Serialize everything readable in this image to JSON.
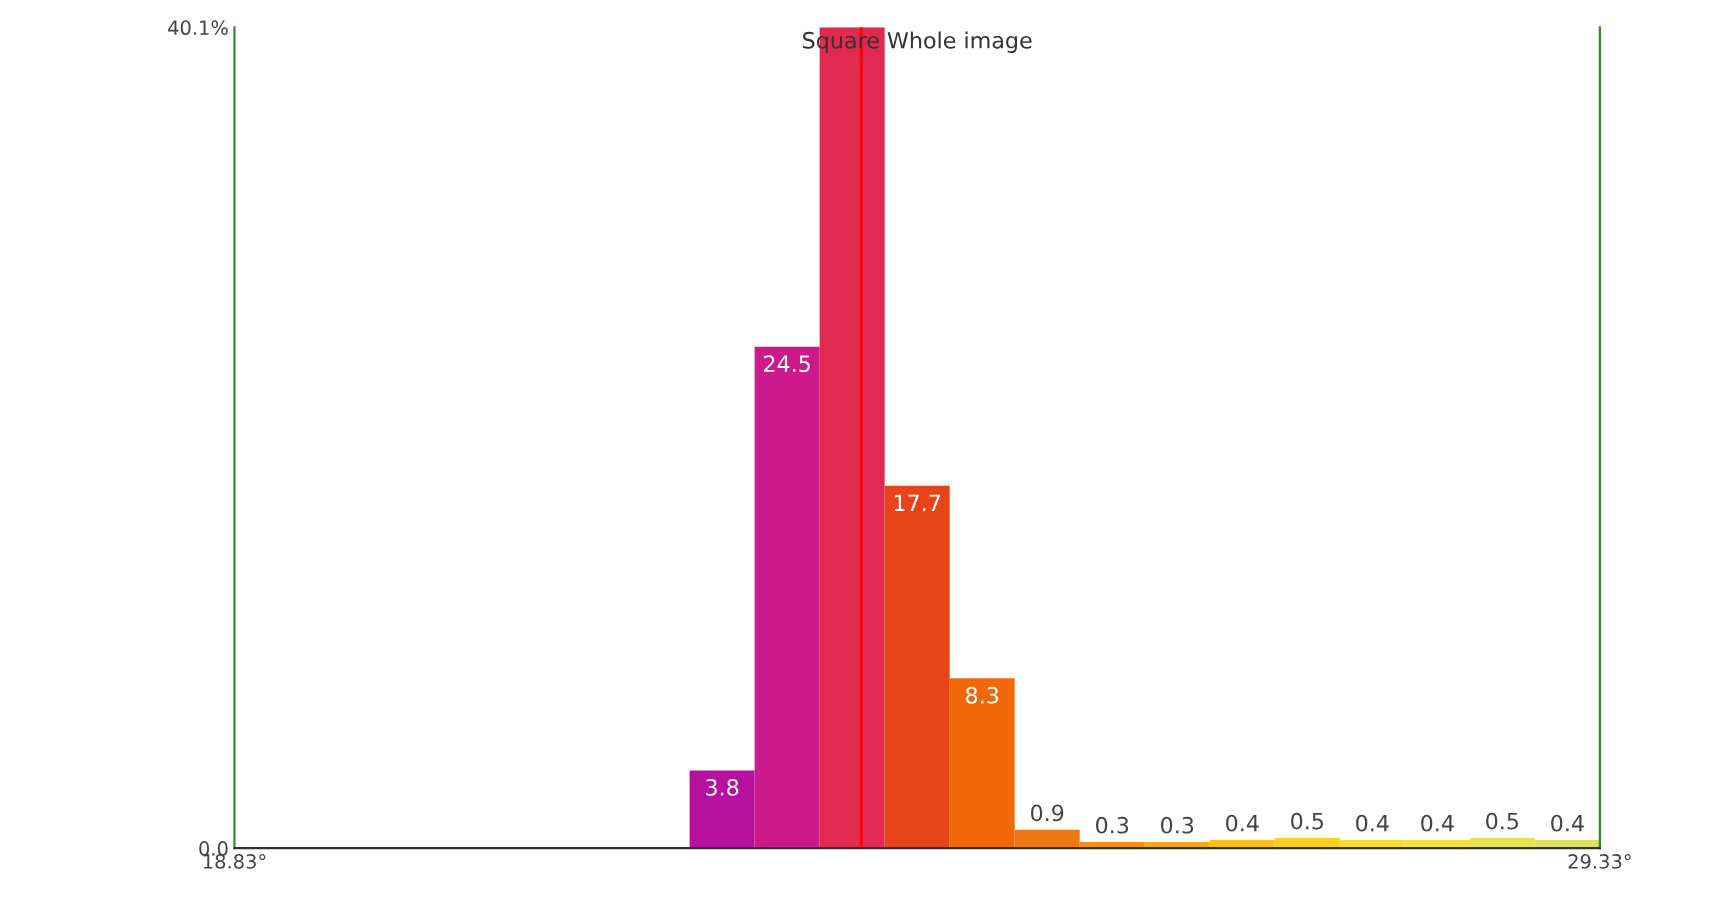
{
  "chart_data": {
    "type": "histogram",
    "title": "Square Whole image",
    "bins": [
      18.83,
      19.33,
      19.83,
      20.33,
      20.83,
      21.33,
      21.83,
      22.33,
      22.83,
      23.33,
      23.83,
      24.33,
      24.83,
      25.33,
      25.83,
      26.33,
      26.83,
      27.33,
      27.83,
      28.33,
      28.83,
      29.33
    ],
    "values": [
      0,
      0,
      0,
      0,
      0,
      0,
      0,
      3.8,
      24.5,
      40.1,
      17.7,
      8.3,
      0.9,
      0.3,
      0.3,
      0.4,
      0.5,
      0.4,
      0.4,
      0.5,
      0.4
    ],
    "value_labels": [
      null,
      null,
      null,
      null,
      null,
      null,
      null,
      "3.8",
      "24.5",
      null,
      "17.7",
      "8.3",
      "0.9",
      "0.3",
      "0.3",
      "0.4",
      "0.5",
      "0.4",
      "0.4",
      "0.5",
      "0.4"
    ],
    "colors": [
      "#b0109e",
      "#b0109e",
      "#b0109e",
      "#b0109e",
      "#b0109e",
      "#b0109e",
      "#b0109e",
      "#b8109e",
      "#cc1a8c",
      "#e02a50",
      "#e8441c",
      "#f06808",
      "#f07810",
      "#f49010",
      "#f8a814",
      "#fcc018",
      "#fcd020",
      "#f8dc30",
      "#f0e040",
      "#e8e050",
      "#e0e060"
    ],
    "xlim": [
      18.83,
      29.33
    ],
    "xticks": [
      {
        "value": 18.83,
        "label": "18.83°"
      },
      {
        "value": 29.33,
        "label": "29.33°"
      }
    ],
    "ylim": [
      0,
      40.1
    ],
    "yticks": [
      {
        "value": 0,
        "label": "0.0"
      },
      {
        "value": 40.1,
        "label": "40.1%"
      }
    ],
    "ref_lines": [
      {
        "axis": "x",
        "value": 23.65,
        "label": null,
        "color": "#ff0000"
      }
    ],
    "grid": false
  }
}
